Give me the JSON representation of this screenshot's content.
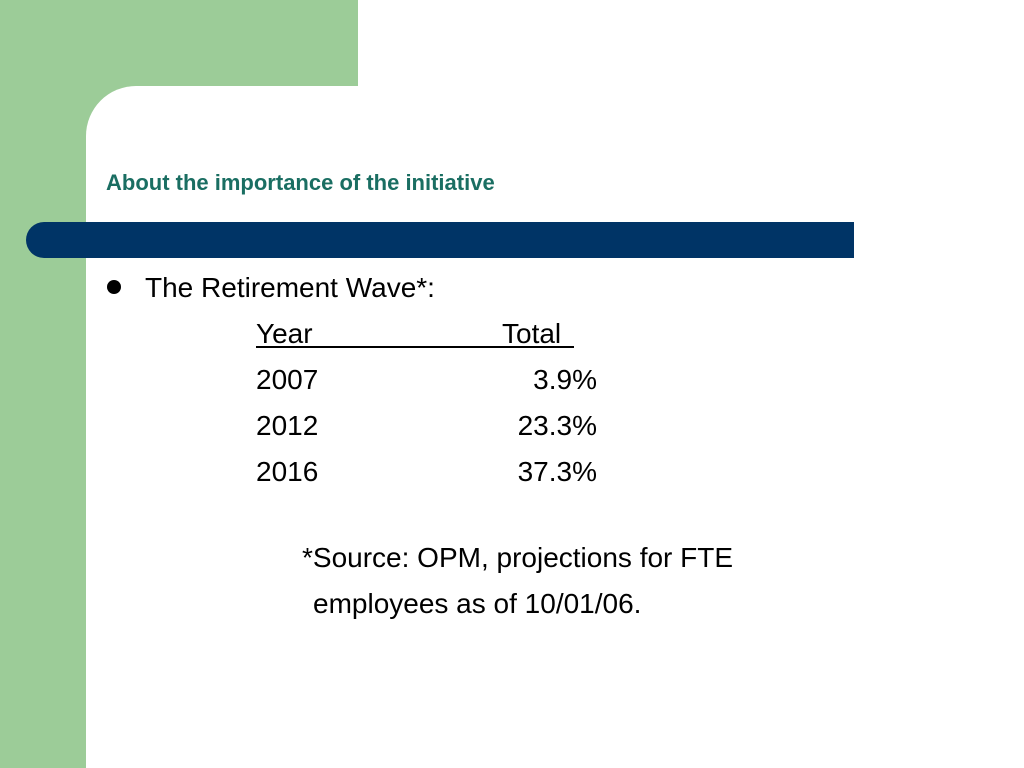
{
  "title": "About the importance of the initiative",
  "bullet": {
    "text": "The Retirement Wave*:"
  },
  "table": {
    "headers": {
      "year": "Year",
      "total": "Total"
    },
    "rows": [
      {
        "year": "2007",
        "total": "3.9%"
      },
      {
        "year": "2012",
        "total": "23.3%"
      },
      {
        "year": "2016",
        "total": "37.3%"
      }
    ]
  },
  "source": {
    "line1": "*Source: OPM, projections for FTE",
    "line2": "employees as of 10/01/06."
  },
  "colors": {
    "green_accent": "#9ccc98",
    "title_bar": "#003466",
    "title_text": "#1a6e62"
  }
}
